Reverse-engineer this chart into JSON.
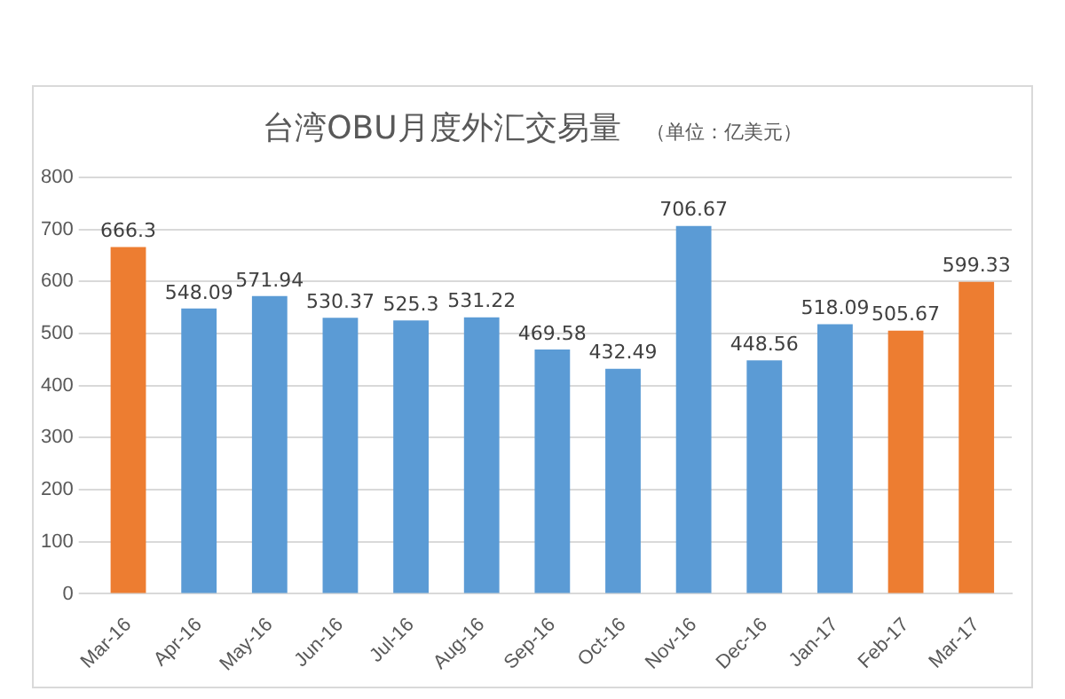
{
  "chart_data": {
    "type": "bar",
    "title": "台湾OBU月度外汇交易量",
    "subtitle": "（单位：亿美元）",
    "categories": [
      "Mar-16",
      "Apr-16",
      "May-16",
      "Jun-16",
      "Jul-16",
      "Aug-16",
      "Sep-16",
      "Oct-16",
      "Nov-16",
      "Dec-16",
      "Jan-17",
      "Feb-17",
      "Mar-17"
    ],
    "values": [
      666.3,
      548.09,
      571.94,
      530.37,
      525.3,
      531.22,
      469.58,
      432.49,
      706.67,
      448.56,
      518.09,
      505.67,
      599.33
    ],
    "colors": [
      "#ed7d31",
      "#5b9bd5",
      "#5b9bd5",
      "#5b9bd5",
      "#5b9bd5",
      "#5b9bd5",
      "#5b9bd5",
      "#5b9bd5",
      "#5b9bd5",
      "#5b9bd5",
      "#5b9bd5",
      "#ed7d31",
      "#ed7d31"
    ],
    "ylim": [
      0,
      800
    ],
    "yticks": [
      0,
      100,
      200,
      300,
      400,
      500,
      600,
      700,
      800
    ],
    "grid": "y",
    "data_labels": true,
    "legend": false
  }
}
